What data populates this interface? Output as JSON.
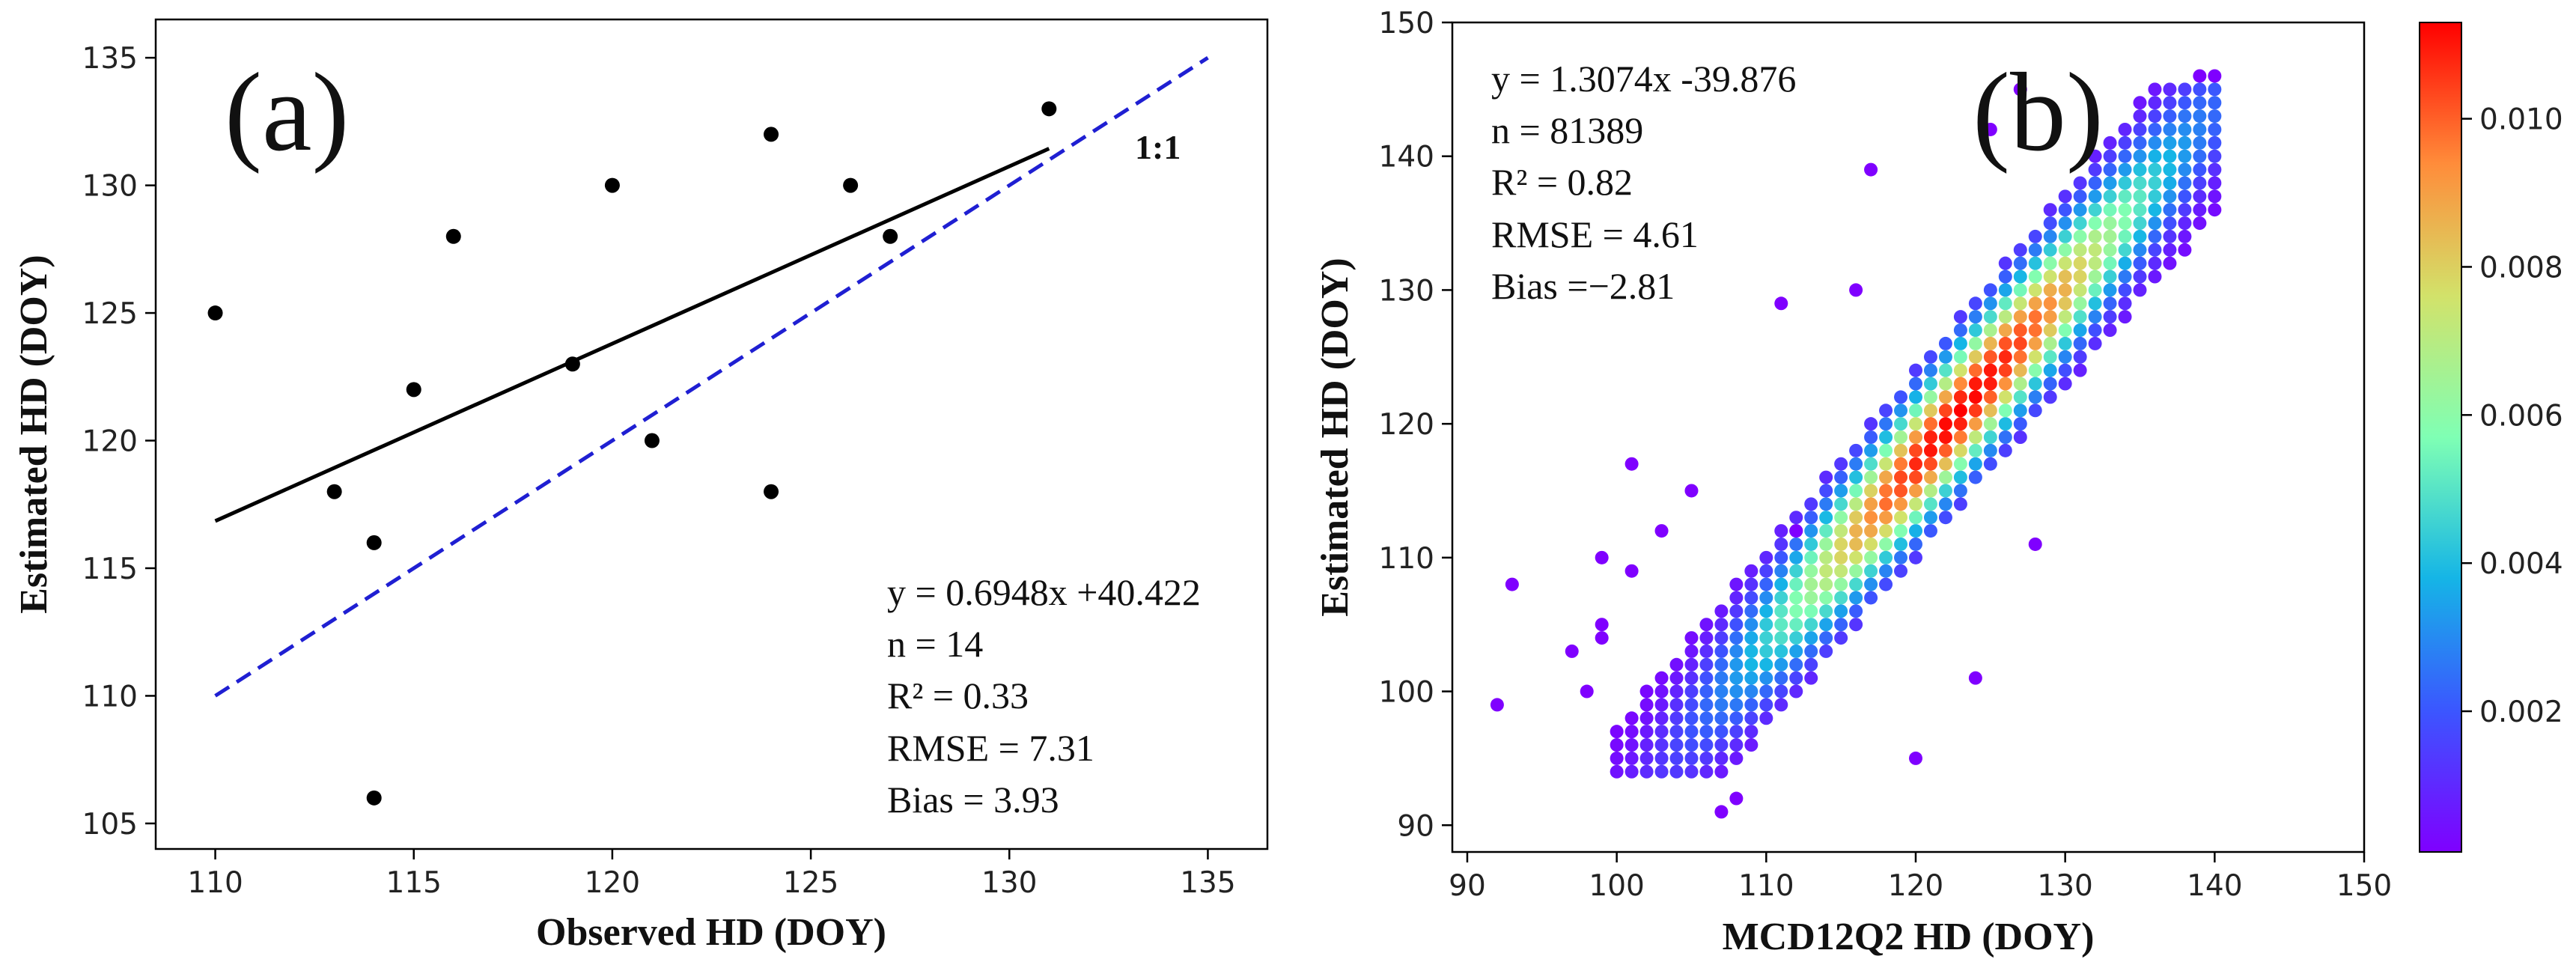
{
  "chart_data": [
    {
      "type": "scatter",
      "panel_label": "(a)",
      "xlabel": "Observed HD (DOY)",
      "ylabel": "Estimated HD (DOY)",
      "xlim": [
        108.5,
        136.5
      ],
      "ylim": [
        104,
        136.5
      ],
      "xticks": [
        110,
        115,
        120,
        125,
        130,
        135
      ],
      "yticks": [
        105,
        110,
        115,
        120,
        125,
        130,
        135
      ],
      "points": [
        {
          "x": 110,
          "y": 125
        },
        {
          "x": 113,
          "y": 118
        },
        {
          "x": 114,
          "y": 116
        },
        {
          "x": 114,
          "y": 106
        },
        {
          "x": 115,
          "y": 122
        },
        {
          "x": 116,
          "y": 128
        },
        {
          "x": 119,
          "y": 123
        },
        {
          "x": 120,
          "y": 130
        },
        {
          "x": 121,
          "y": 120
        },
        {
          "x": 124,
          "y": 132
        },
        {
          "x": 124,
          "y": 118
        },
        {
          "x": 126,
          "y": 130
        },
        {
          "x": 127,
          "y": 128
        },
        {
          "x": 131,
          "y": 133
        }
      ],
      "fit_line": {
        "slope": 0.6948,
        "intercept": 40.422,
        "x_range": [
          110,
          131
        ],
        "color": "#000000"
      },
      "one_to_one": {
        "x_range": [
          110,
          135
        ],
        "label": "1:1",
        "color": "#1f1fd2"
      },
      "stats": [
        "y = 0.6948x +40.422",
        "n = 14",
        "R² = 0.33",
        "RMSE = 7.31",
        "Bias = 3.93"
      ]
    },
    {
      "type": "scatter",
      "subtype": "density",
      "panel_label": "(b)",
      "xlabel": "MCD12Q2 HD (DOY)",
      "ylabel": "Estimated HD (DOY)",
      "xlim": [
        89,
        150
      ],
      "ylim": [
        88,
        150
      ],
      "xticks": [
        90,
        100,
        110,
        120,
        130,
        140,
        150
      ],
      "yticks": [
        90,
        100,
        110,
        120,
        130,
        140,
        150
      ],
      "density_model": {
        "slope": 1.3074,
        "intercept": -39.876,
        "center_x": 123,
        "peak": 0.011
      },
      "outliers": [
        {
          "x": 92,
          "y": 99
        },
        {
          "x": 93,
          "y": 108
        },
        {
          "x": 97,
          "y": 103
        },
        {
          "x": 98,
          "y": 100
        },
        {
          "x": 99,
          "y": 110
        },
        {
          "x": 99,
          "y": 105
        },
        {
          "x": 99,
          "y": 104
        },
        {
          "x": 101,
          "y": 117
        },
        {
          "x": 101,
          "y": 109
        },
        {
          "x": 103,
          "y": 112
        },
        {
          "x": 107,
          "y": 91
        },
        {
          "x": 108,
          "y": 92
        },
        {
          "x": 111,
          "y": 129
        },
        {
          "x": 112,
          "y": 112
        },
        {
          "x": 117,
          "y": 139
        },
        {
          "x": 120,
          "y": 95
        },
        {
          "x": 124,
          "y": 101
        },
        {
          "x": 125,
          "y": 142
        },
        {
          "x": 127,
          "y": 145
        },
        {
          "x": 128,
          "y": 111
        },
        {
          "x": 139,
          "y": 146
        },
        {
          "x": 140,
          "y": 146
        },
        {
          "x": 116,
          "y": 130
        },
        {
          "x": 105,
          "y": 115
        }
      ],
      "stats": [
        "y = 1.3074x -39.876",
        "n = 81389",
        "R² = 0.82",
        "RMSE = 4.61",
        "Bias =−2.81"
      ],
      "colorbar": {
        "ticks": [
          "0.002",
          "0.004",
          "0.006",
          "0.008",
          "0.010"
        ],
        "tick_values": [
          0.002,
          0.004,
          0.006,
          0.008,
          0.01
        ],
        "range": [
          0.0001,
          0.0113
        ]
      }
    }
  ]
}
